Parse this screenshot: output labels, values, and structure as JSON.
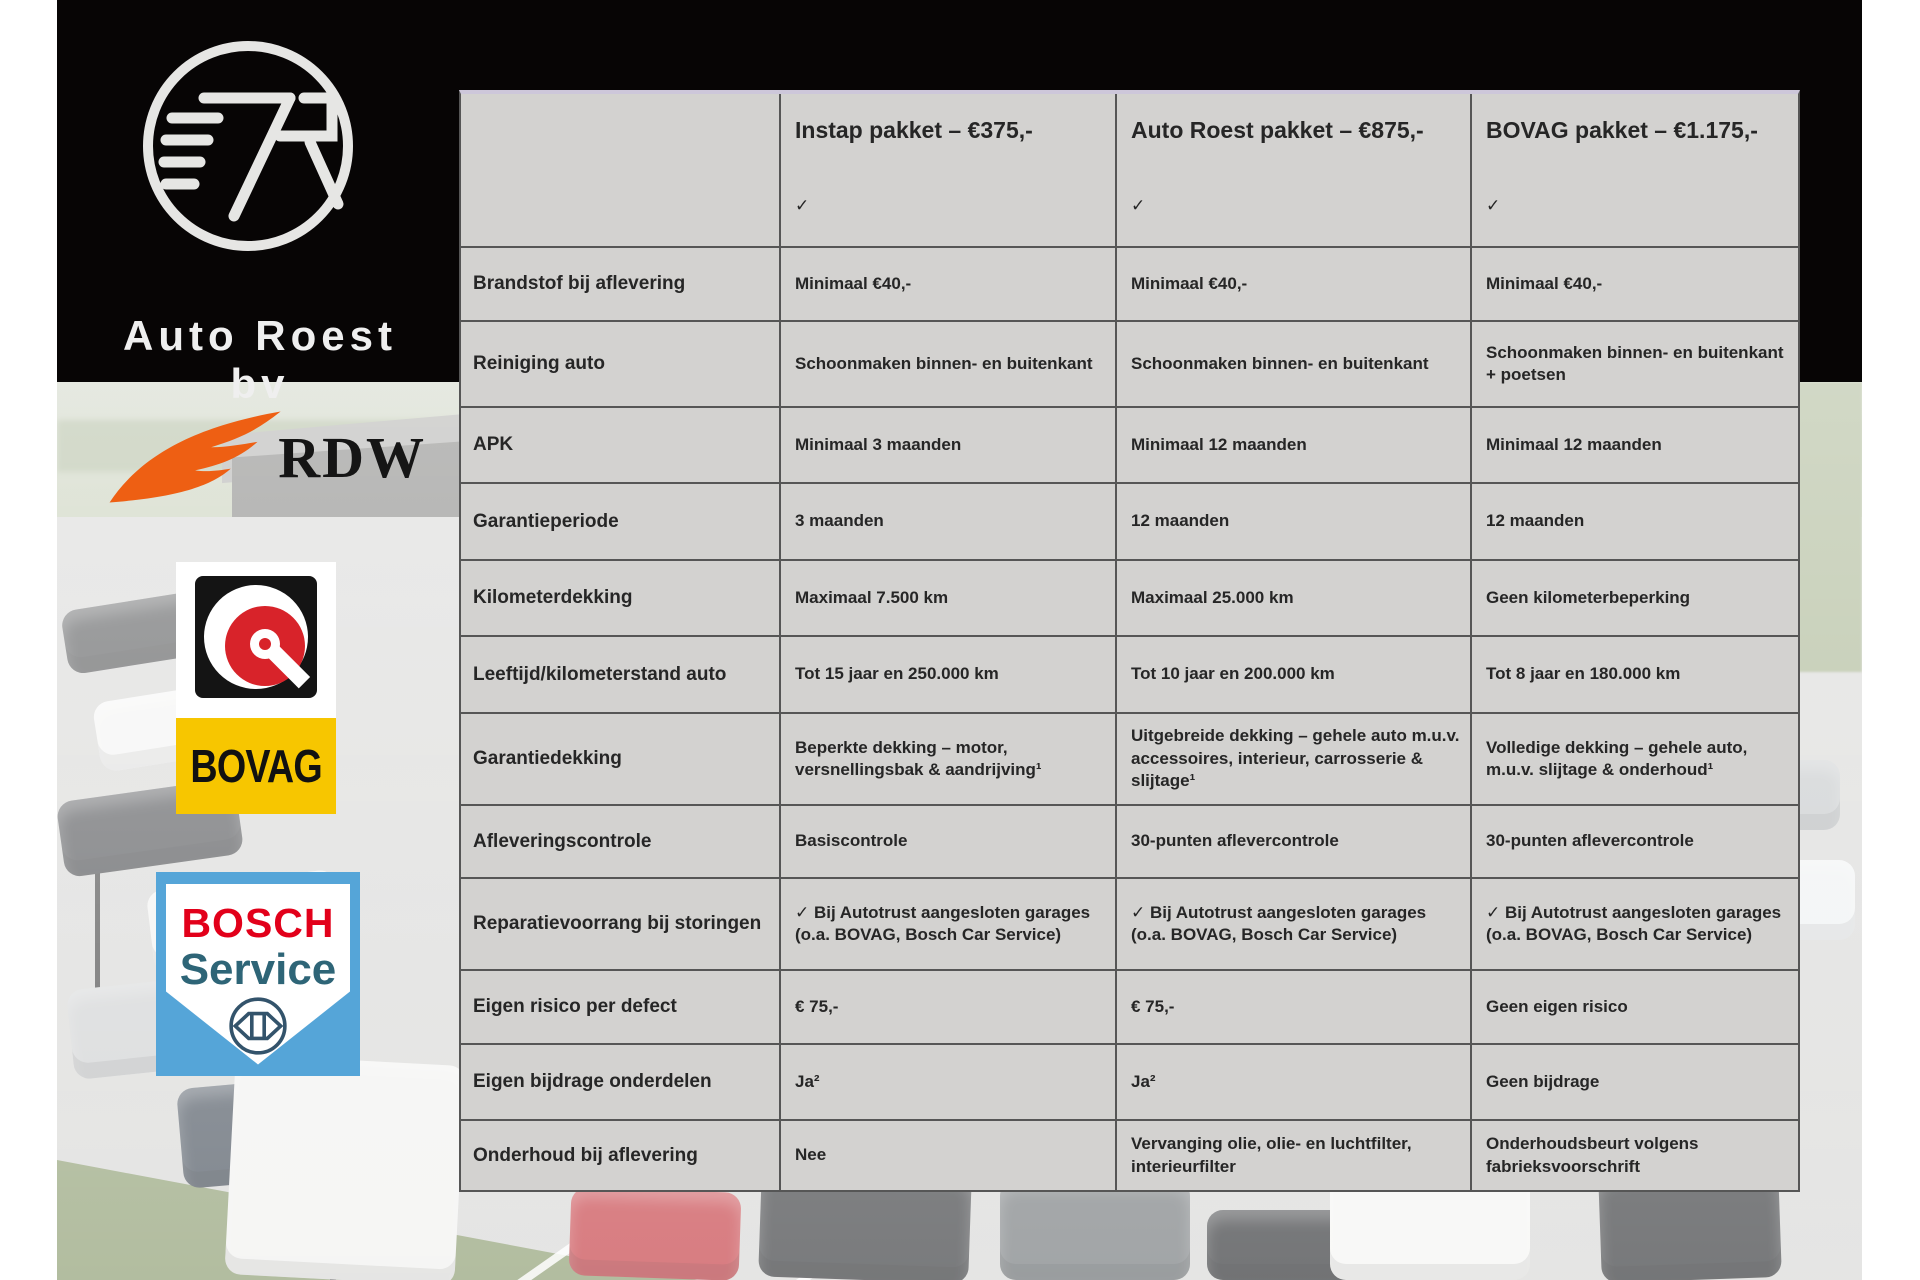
{
  "brand": {
    "name": "Auto Roest bv"
  },
  "partners": {
    "rdw": "RDW",
    "bovag": "BOVAG",
    "bosch_line1": "BOSCH",
    "bosch_line2": "Service"
  },
  "table": {
    "columns": [
      "",
      "Instap pakket – €375,-",
      "Auto Roest pakket – €875,-",
      "BOVAG pakket – €1.175,-"
    ],
    "rows": [
      {
        "label": "",
        "values": [
          "✓",
          "✓",
          "✓"
        ]
      },
      {
        "label": "Brandstof bij aflevering",
        "values": [
          "Minimaal €40,-",
          "Minimaal €40,-",
          "Minimaal €40,-"
        ]
      },
      {
        "label": "Reiniging auto",
        "values": [
          "Schoonmaken binnen- en buitenkant",
          "Schoonmaken binnen- en buitenkant",
          "Schoonmaken binnen- en buitenkant + poetsen"
        ]
      },
      {
        "label": "APK",
        "values": [
          "Minimaal 3 maanden",
          "Minimaal 12 maanden",
          "Minimaal 12 maanden"
        ]
      },
      {
        "label": "Garantieperiode",
        "values": [
          "3 maanden",
          "12 maanden",
          "12 maanden"
        ]
      },
      {
        "label": "Kilometerdekking",
        "values": [
          "Maximaal 7.500 km",
          "Maximaal 25.000 km",
          "Geen kilometerbeperking"
        ]
      },
      {
        "label": "Leeftijd/kilometerstand auto",
        "values": [
          "Tot 15 jaar en 250.000 km",
          "Tot 10 jaar en 200.000 km",
          "Tot 8 jaar en 180.000 km"
        ]
      },
      {
        "label": "Garantiedekking",
        "values": [
          "Beperkte dekking – motor, versnellingsbak & aandrijving¹",
          "Uitgebreide dekking – gehele auto m.u.v. accessoires, interieur, carrosserie & slijtage¹",
          "Volledige dekking – gehele auto, m.u.v. slijtage & onderhoud¹"
        ]
      },
      {
        "label": "Afleveringscontrole",
        "values": [
          "Basiscontrole",
          "30-punten aflevercontrole",
          "30-punten aflevercontrole"
        ]
      },
      {
        "label": "Reparatievoorrang bij storingen",
        "values": [
          "✓ Bij Autotrust aangesloten garages (o.a. BOVAG, Bosch Car Service)",
          "✓ Bij Autotrust aangesloten garages (o.a. BOVAG, Bosch Car Service)",
          "✓ Bij Autotrust aangesloten garages (o.a. BOVAG, Bosch Car Service)"
        ]
      },
      {
        "label": "Eigen risico per defect",
        "values": [
          "€ 75,-",
          "€ 75,-",
          "Geen eigen risico"
        ]
      },
      {
        "label": "Eigen bijdrage onderdelen",
        "values": [
          "Ja²",
          "Ja²",
          "Geen bijdrage"
        ]
      },
      {
        "label": "Onderhoud bij aflevering",
        "values": [
          "Nee",
          "Vervanging olie, olie- en luchtfilter, interieurfilter",
          "Onderhoudsbeurt volgens fabrieksvoorschrift"
        ]
      }
    ]
  },
  "colors": {
    "table_bg": "#d3d2d0",
    "table_border": "#565656",
    "table_top_accent": "#cdc7da",
    "band_black": "#070505",
    "rdw_orange": "#ee5f13",
    "bovag_yellow": "#f7c600",
    "bovag_red": "#d8232a",
    "bosch_blue": "#55a5d8",
    "bosch_red": "#e2001a",
    "bosch_teal": "#2e6577"
  }
}
